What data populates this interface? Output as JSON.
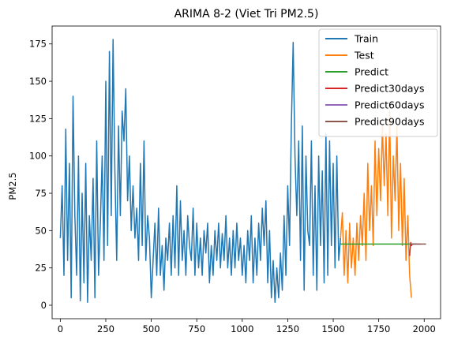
{
  "chart_data": {
    "type": "line",
    "title": "ARIMA 8-2 (Viet Tri PM2.5)",
    "xlabel": "",
    "ylabel": "PM2.5",
    "xlim": [
      -45,
      2090
    ],
    "ylim": [
      -9,
      187
    ],
    "xticks": [
      0,
      250,
      500,
      750,
      1000,
      1250,
      1500,
      1750,
      2000
    ],
    "yticks": [
      0,
      25,
      50,
      75,
      100,
      125,
      150,
      175
    ],
    "grid": false,
    "legend_position": "top-right",
    "series": [
      {
        "name": "Train",
        "color": "#1f77b4",
        "x": [
          0,
          10,
          20,
          30,
          40,
          50,
          60,
          70,
          80,
          90,
          100,
          110,
          120,
          130,
          140,
          150,
          160,
          170,
          180,
          190,
          200,
          210,
          220,
          230,
          240,
          250,
          260,
          270,
          280,
          290,
          300,
          310,
          320,
          330,
          340,
          350,
          360,
          370,
          380,
          390,
          400,
          410,
          420,
          430,
          440,
          450,
          460,
          470,
          480,
          490,
          500,
          510,
          520,
          530,
          540,
          550,
          560,
          570,
          580,
          590,
          600,
          610,
          620,
          630,
          640,
          650,
          660,
          670,
          680,
          690,
          700,
          710,
          720,
          730,
          740,
          750,
          760,
          770,
          780,
          790,
          800,
          810,
          820,
          830,
          840,
          850,
          860,
          870,
          880,
          890,
          900,
          910,
          920,
          930,
          940,
          950,
          960,
          970,
          980,
          990,
          1000,
          1010,
          1020,
          1030,
          1040,
          1050,
          1060,
          1070,
          1080,
          1090,
          1100,
          1110,
          1120,
          1130,
          1140,
          1150,
          1160,
          1170,
          1180,
          1190,
          1200,
          1210,
          1220,
          1230,
          1240,
          1250,
          1260,
          1270,
          1280,
          1290,
          1300,
          1310,
          1320,
          1330,
          1340,
          1350,
          1360,
          1370,
          1380,
          1390,
          1400,
          1410,
          1420,
          1430,
          1440,
          1450,
          1460,
          1470,
          1480,
          1490,
          1500,
          1510,
          1520,
          1530,
          1540
        ],
        "values": [
          45,
          80,
          20,
          118,
          30,
          95,
          5,
          140,
          60,
          20,
          100,
          3,
          75,
          15,
          95,
          2,
          60,
          30,
          85,
          5,
          110,
          20,
          55,
          100,
          30,
          150,
          40,
          170,
          60,
          178,
          90,
          30,
          120,
          60,
          130,
          110,
          145,
          70,
          100,
          50,
          80,
          45,
          65,
          30,
          95,
          40,
          110,
          30,
          60,
          45,
          5,
          30,
          55,
          20,
          65,
          20,
          40,
          10,
          45,
          30,
          55,
          20,
          60,
          25,
          80,
          20,
          70,
          30,
          50,
          20,
          60,
          40,
          30,
          65,
          20,
          55,
          25,
          45,
          20,
          50,
          35,
          55,
          15,
          40,
          20,
          50,
          30,
          55,
          25,
          48,
          30,
          60,
          25,
          45,
          20,
          50,
          25,
          55,
          30,
          45,
          20,
          40,
          15,
          50,
          30,
          60,
          15,
          45,
          20,
          55,
          30,
          65,
          40,
          70,
          15,
          50,
          5,
          30,
          2,
          25,
          5,
          35,
          10,
          60,
          20,
          80,
          40,
          120,
          176,
          100,
          60,
          110,
          30,
          120,
          10,
          100,
          50,
          40,
          110,
          20,
          80,
          10,
          100,
          40,
          90,
          15,
          115,
          20,
          110,
          40,
          95,
          25,
          100,
          30,
          45
        ]
      },
      {
        "name": "Test",
        "color": "#ff7f0e",
        "x": [
          1540,
          1550,
          1560,
          1570,
          1580,
          1590,
          1600,
          1610,
          1620,
          1630,
          1640,
          1650,
          1660,
          1670,
          1680,
          1690,
          1700,
          1710,
          1720,
          1730,
          1740,
          1750,
          1760,
          1770,
          1780,
          1790,
          1800,
          1810,
          1820,
          1830,
          1840,
          1850,
          1860,
          1870,
          1880,
          1890,
          1900,
          1910,
          1920,
          1930
        ],
        "values": [
          45,
          62,
          20,
          50,
          15,
          55,
          25,
          45,
          20,
          55,
          30,
          60,
          40,
          75,
          30,
          95,
          50,
          80,
          40,
          110,
          60,
          105,
          70,
          120,
          80,
          115,
          60,
          130,
          45,
          100,
          70,
          120,
          50,
          95,
          40,
          85,
          30,
          60,
          20,
          5
        ]
      },
      {
        "name": "Predict",
        "color": "#2ca02c",
        "x": [
          1540,
          1920
        ],
        "values": [
          41,
          41
        ]
      },
      {
        "name": "Predict30days",
        "color": "#d62728",
        "x": [
          1920,
          1923,
          1926,
          1930,
          1935,
          1940,
          1945,
          1950
        ],
        "values": [
          33,
          38,
          42,
          40,
          41,
          41,
          41,
          41
        ]
      },
      {
        "name": "Predict60days",
        "color": "#9467bd",
        "x": [
          1920,
          1950,
          1980
        ],
        "values": [
          41,
          41,
          41
        ]
      },
      {
        "name": "Predict90days",
        "color": "#8c564b",
        "x": [
          1920,
          1960,
          2010
        ],
        "values": [
          41,
          41,
          41
        ]
      }
    ]
  }
}
